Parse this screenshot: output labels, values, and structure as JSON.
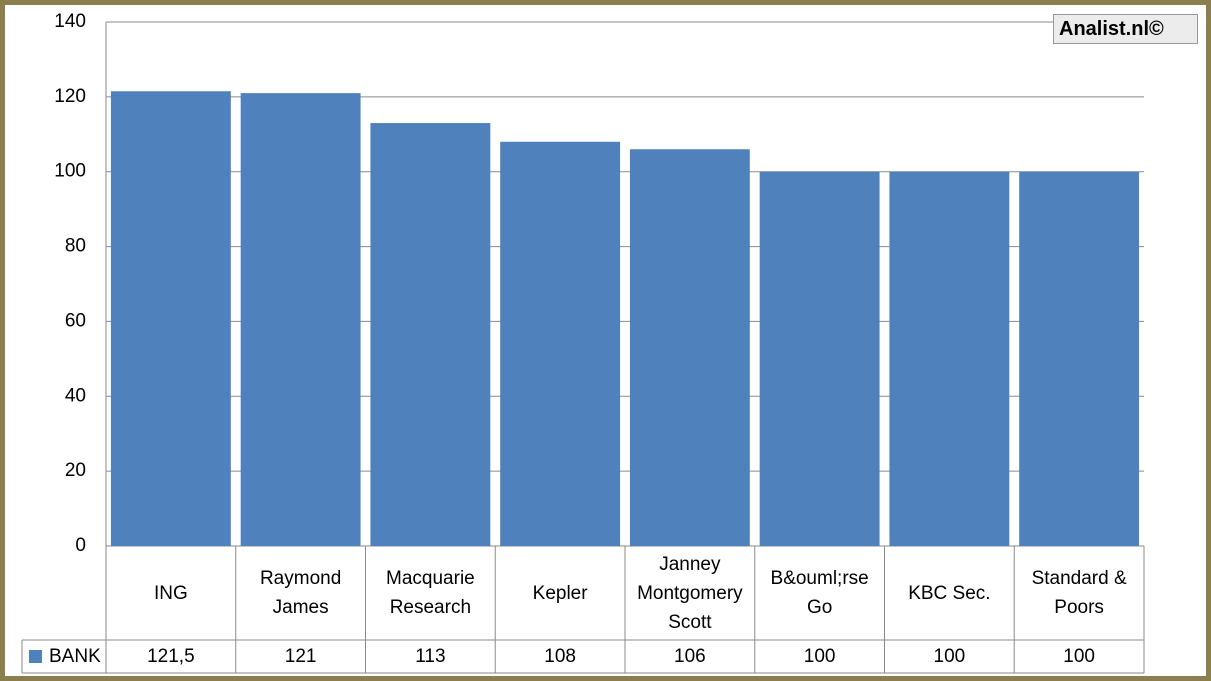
{
  "chart_data": {
    "type": "bar",
    "watermark": "Analist.nl©",
    "categories": [
      "ING",
      "Raymond James",
      "Macquarie Research",
      "Kepler",
      "Janney Montgomery Scott",
      "B&ouml;rse Go",
      "KBC Sec.",
      "Standard & Poors"
    ],
    "series": [
      {
        "name": "BANK",
        "color": "#4f81bd",
        "values": [
          121.5,
          121,
          113,
          108,
          106,
          100,
          100,
          100
        ],
        "value_labels": [
          "121,5",
          "121",
          "113",
          "108",
          "106",
          "100",
          "100",
          "100"
        ]
      }
    ],
    "ylim": [
      0,
      140
    ],
    "yticks": [
      0,
      20,
      40,
      60,
      80,
      100,
      120,
      140
    ],
    "grid": true
  }
}
